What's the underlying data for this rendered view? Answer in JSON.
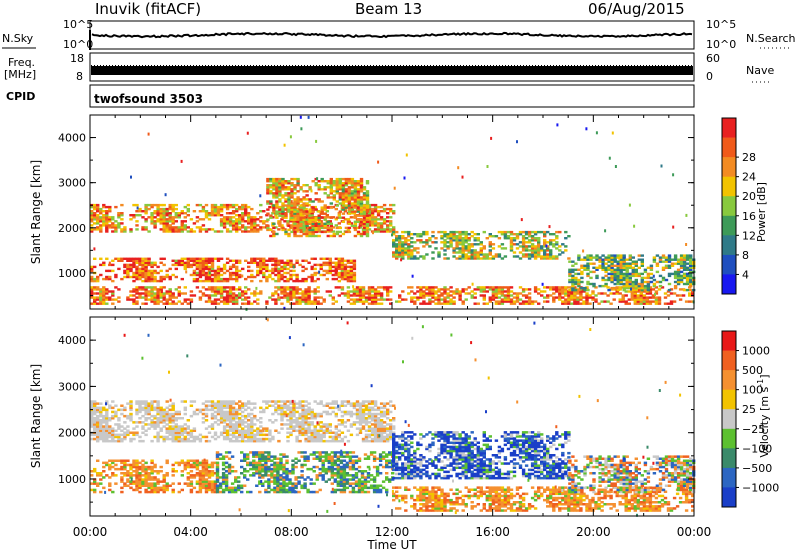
{
  "header": {
    "station": "Inuvik (fitACF)",
    "beam": "Beam 13",
    "date": "06/Aug/2015"
  },
  "strip_labels": {
    "nsky": "N.Sky",
    "freq_top": "Freq.",
    "freq_bottom": "[MHz]",
    "cpid": "CPID",
    "nsearch": "N.Search",
    "nave": "Nave",
    "cpid_value": "twofsound 3503"
  },
  "strip_ticks": {
    "nsky_left": [
      "10^5",
      "10^0"
    ],
    "nsky_right": [
      "10^5",
      "10^0"
    ],
    "freq_left": [
      "18",
      "8"
    ],
    "nave_right": [
      "60",
      "0"
    ]
  },
  "chart_data": [
    {
      "type": "heatmap",
      "name": "power-panel",
      "x_axis": "Time UT",
      "ylabel": "Slant Range [km]",
      "xlim": [
        "00:00",
        "24:00"
      ],
      "ylim": [
        200,
        4500
      ],
      "yticks": [
        "1000",
        "2000",
        "3000",
        "4000"
      ],
      "colorbar": {
        "label": "Power [dB]",
        "range": [
          0,
          30
        ],
        "ticks": [
          "4",
          "8",
          "12",
          "16",
          "20",
          "24",
          "28"
        ],
        "colors": [
          "#1818f0",
          "#1f4fbf",
          "#2f7a88",
          "#3d9a58",
          "#88c93e",
          "#f2c300",
          "#f38b22",
          "#f05a1a",
          "#e82020"
        ]
      },
      "echo_bands": [
        {
          "t_start": 0.0,
          "t_end": 12.0,
          "r_min": 1900,
          "r_max": 2500,
          "level": 0.75
        },
        {
          "t_start": 0.0,
          "t_end": 10.5,
          "r_min": 800,
          "r_max": 1300,
          "level": 0.85
        },
        {
          "t_start": 0.0,
          "t_end": 24.0,
          "r_min": 300,
          "r_max": 700,
          "level": 0.8
        },
        {
          "t_start": 12.0,
          "t_end": 19.0,
          "r_min": 1300,
          "r_max": 1900,
          "level": 0.55
        },
        {
          "t_start": 19.0,
          "t_end": 24.0,
          "r_min": 600,
          "r_max": 1400,
          "level": 0.45
        },
        {
          "t_start": 7.0,
          "t_end": 11.0,
          "r_min": 1800,
          "r_max": 3100,
          "level": 0.7
        }
      ]
    },
    {
      "type": "heatmap",
      "name": "velocity-panel",
      "x_axis": "Time UT",
      "ylabel": "Slant Range [km]",
      "xlim": [
        "00:00",
        "24:00"
      ],
      "ylim": [
        200,
        4500
      ],
      "yticks": [
        "1000",
        "2000",
        "3000",
        "4000"
      ],
      "xticks": [
        "00:00",
        "04:00",
        "08:00",
        "12:00",
        "16:00",
        "20:00",
        "00:00"
      ],
      "colorbar": {
        "label": "Velocity [m s",
        "label_sup": "-1",
        "label_end": "]",
        "ticks": [
          "1000",
          "500",
          "100",
          "25",
          "−25",
          "−100",
          "−500",
          "−1000"
        ],
        "colors": [
          "#1a3fc8",
          "#2c66c2",
          "#3a8a6a",
          "#5cc030",
          "#c8c8c8",
          "#f2c300",
          "#f59030",
          "#f06020",
          "#e81818"
        ]
      },
      "echo_bands": [
        {
          "t_start": 0.0,
          "t_end": 12.0,
          "r_min": 1800,
          "r_max": 2700,
          "class": "gray"
        },
        {
          "t_start": 0.0,
          "t_end": 5.0,
          "r_min": 700,
          "r_max": 1400,
          "class": "orange"
        },
        {
          "t_start": 5.0,
          "t_end": 12.0,
          "r_min": 700,
          "r_max": 1600,
          "class": "green-blue"
        },
        {
          "t_start": 12.0,
          "t_end": 19.0,
          "r_min": 1000,
          "r_max": 2000,
          "class": "blue"
        },
        {
          "t_start": 12.0,
          "t_end": 24.0,
          "r_min": 300,
          "r_max": 800,
          "class": "orange"
        },
        {
          "t_start": 19.0,
          "t_end": 24.0,
          "r_min": 700,
          "r_max": 1500,
          "class": "mixed"
        }
      ]
    }
  ],
  "axes": {
    "xlabel": "Time UT"
  }
}
